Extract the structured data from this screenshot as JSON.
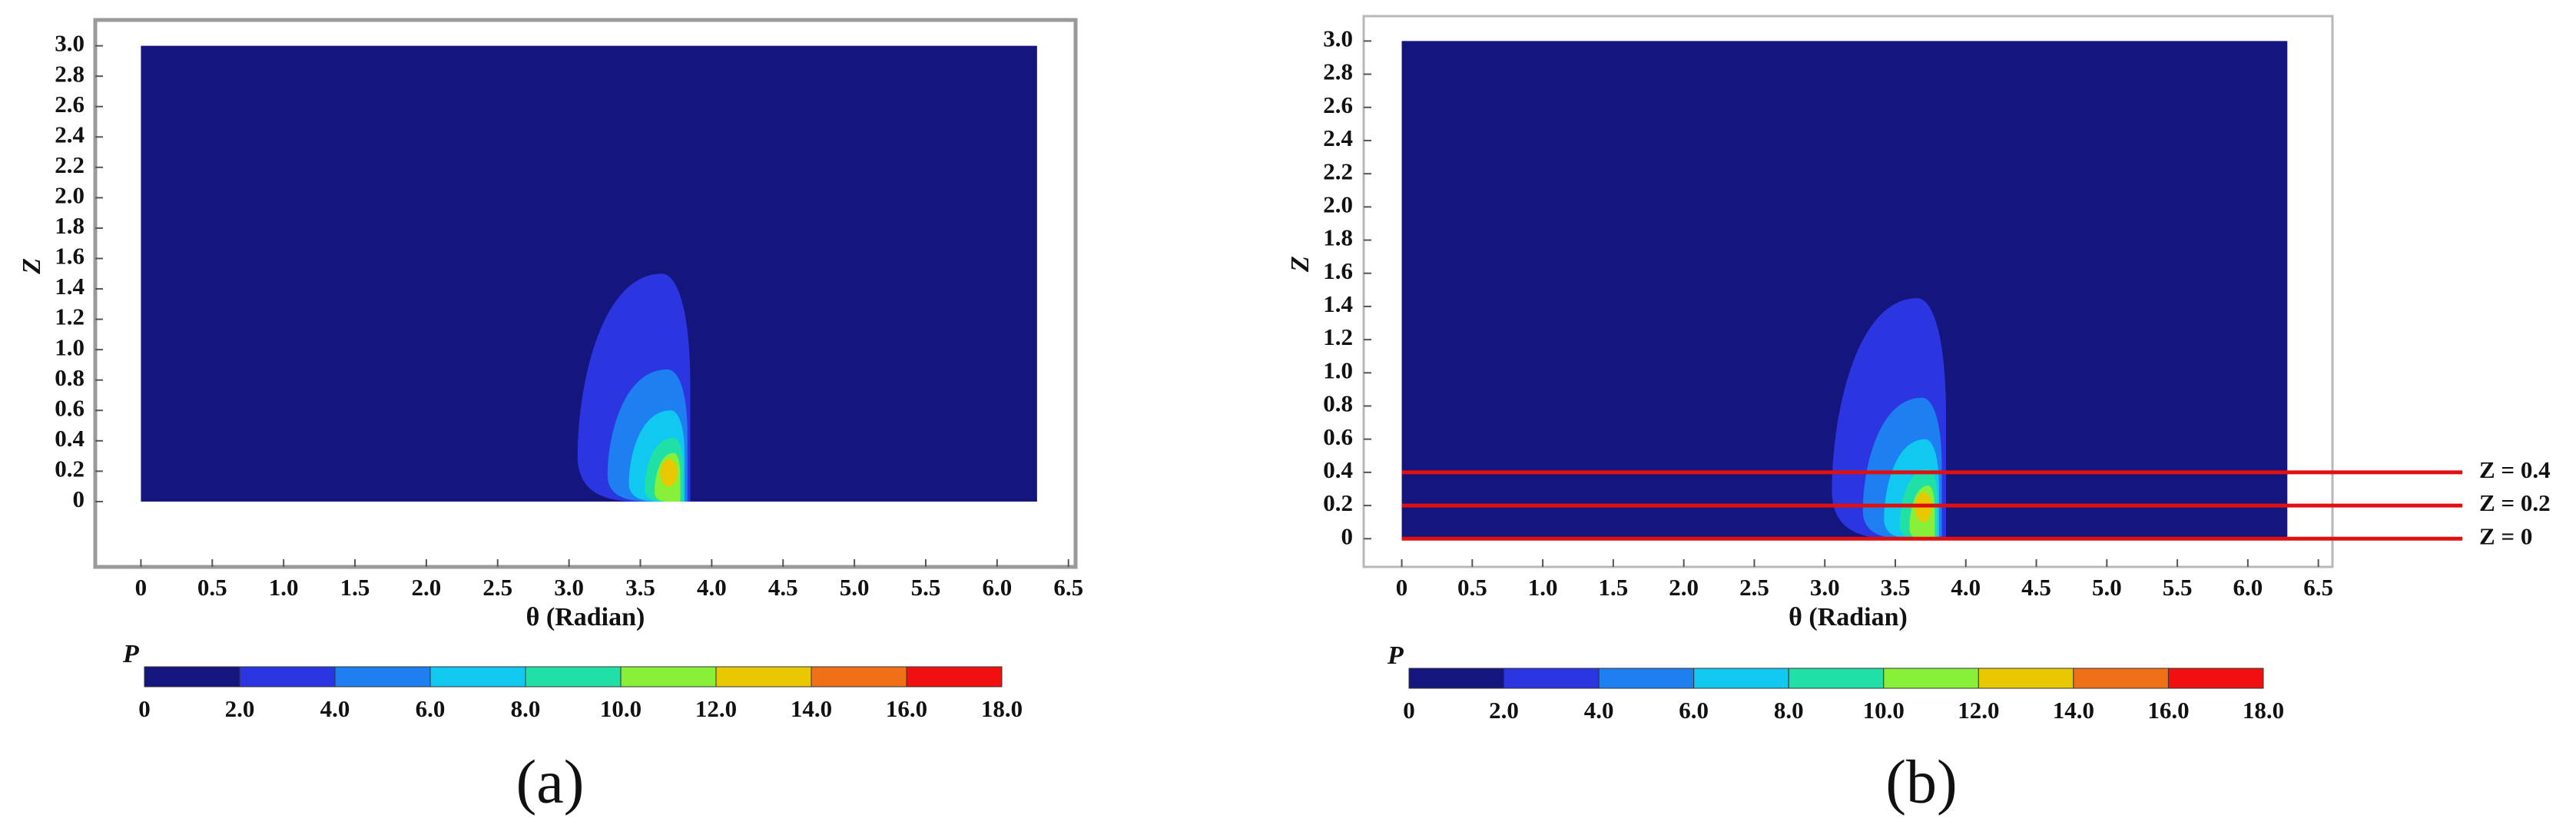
{
  "chart_data": [
    {
      "type": "contour",
      "panel_label": "(a)",
      "xlabel": "θ (Radian)",
      "ylabel": "Z",
      "xlim": [
        -0.32,
        6.55
      ],
      "ylim": [
        -0.43,
        3.17
      ],
      "xticks": [
        0,
        0.5,
        {
          "value": 1,
          "label": "1.0"
        },
        1.5,
        {
          "value": 2,
          "label": "2.0"
        },
        2.5,
        {
          "value": 3,
          "label": "3.0"
        },
        3.5,
        {
          "value": 4,
          "label": "4.0"
        },
        4.5,
        {
          "value": 5,
          "label": "5.0"
        },
        5.5,
        {
          "value": 6,
          "label": "6.0"
        },
        6.5
      ],
      "yticks": [
        0,
        0.2,
        0.4,
        0.6,
        0.8,
        {
          "value": 1,
          "label": "1.0"
        },
        1.2,
        1.4,
        1.6,
        1.8,
        {
          "value": 2,
          "label": "2.0"
        },
        2.2,
        2.4,
        2.6,
        2.8,
        {
          "value": 3,
          "label": "3.0"
        }
      ],
      "domain": {
        "theta": [
          0,
          6.28
        ],
        "z": [
          0,
          3
        ]
      },
      "contours": [
        {
          "level": 2,
          "theta": [
            3.06,
            3.85
          ],
          "z": [
            0,
            1.5
          ]
        },
        {
          "level": 4,
          "theta": [
            3.27,
            3.83
          ],
          "z": [
            0,
            0.87
          ]
        },
        {
          "level": 6,
          "theta": [
            3.42,
            3.81
          ],
          "z": [
            0,
            0.6
          ]
        },
        {
          "level": 8,
          "theta": [
            3.53,
            3.8
          ],
          "z": [
            0,
            0.42
          ]
        },
        {
          "level": 10,
          "theta": [
            3.6,
            3.78
          ],
          "z": [
            0,
            0.32
          ]
        },
        {
          "level": 12,
          "theta": [
            3.64,
            3.76
          ],
          "z": [
            0.1,
            0.28
          ]
        }
      ],
      "colorbar": {
        "label": "P",
        "ticks": [
          0,
          {
            "value": 2,
            "label": "2.0"
          },
          {
            "value": 4,
            "label": "4.0"
          },
          {
            "value": 6,
            "label": "6.0"
          },
          {
            "value": 8,
            "label": "8.0"
          },
          {
            "value": 10,
            "label": "10.0"
          },
          {
            "value": 12,
            "label": "12.0"
          },
          {
            "value": 14,
            "label": "14.0"
          },
          {
            "value": 16,
            "label": "16.0"
          },
          {
            "value": 18,
            "label": "18.0"
          }
        ],
        "colors": [
          "#15157e",
          "#2b35e0",
          "#1e7ff0",
          "#10c8f0",
          "#20e0a8",
          "#88f038",
          "#e8c800",
          "#f07018",
          "#f01010"
        ]
      }
    },
    {
      "type": "contour",
      "panel_label": "(b)",
      "xlabel": "θ (Radian)",
      "ylabel": "Z",
      "xlim": [
        -0.27,
        6.6
      ],
      "ylim": [
        -0.17,
        3.15
      ],
      "xticks": [
        0,
        0.5,
        {
          "value": 1,
          "label": "1.0"
        },
        1.5,
        {
          "value": 2,
          "label": "2.0"
        },
        2.5,
        {
          "value": 3,
          "label": "3.0"
        },
        3.5,
        {
          "value": 4,
          "label": "4.0"
        },
        4.5,
        {
          "value": 5,
          "label": "5.0"
        },
        5.5,
        {
          "value": 6,
          "label": "6.0"
        },
        6.5
      ],
      "yticks": [
        0,
        0.2,
        0.4,
        0.6,
        0.8,
        {
          "value": 1,
          "label": "1.0"
        },
        1.2,
        1.4,
        1.6,
        1.8,
        {
          "value": 2,
          "label": "2.0"
        },
        2.2,
        2.4,
        2.6,
        2.8,
        {
          "value": 3,
          "label": "3.0"
        }
      ],
      "domain": {
        "theta": [
          0,
          6.28
        ],
        "z": [
          0,
          3
        ]
      },
      "contours": [
        {
          "level": 2,
          "theta": [
            3.05,
            3.86
          ],
          "z": [
            0,
            1.45
          ]
        },
        {
          "level": 4,
          "theta": [
            3.27,
            3.83
          ],
          "z": [
            0,
            0.85
          ]
        },
        {
          "level": 6,
          "theta": [
            3.42,
            3.81
          ],
          "z": [
            0,
            0.6
          ]
        },
        {
          "level": 8,
          "theta": [
            3.53,
            3.8
          ],
          "z": [
            0,
            0.42
          ]
        },
        {
          "level": 10,
          "theta": [
            3.6,
            3.78
          ],
          "z": [
            0,
            0.32
          ]
        },
        {
          "level": 12,
          "theta": [
            3.64,
            3.76
          ],
          "z": [
            0.1,
            0.28
          ]
        }
      ],
      "lines": [
        {
          "value": 0.4,
          "label": "Z = 0.4",
          "color": "#e01010"
        },
        {
          "value": 0.2,
          "label": "Z = 0.2",
          "color": "#e01010"
        },
        {
          "value": 0,
          "label": "Z = 0",
          "color": "#e01010"
        }
      ],
      "colorbar": {
        "label": "P",
        "ticks": [
          0,
          {
            "value": 2,
            "label": "2.0"
          },
          {
            "value": 4,
            "label": "4.0"
          },
          {
            "value": 6,
            "label": "6.0"
          },
          {
            "value": 8,
            "label": "8.0"
          },
          {
            "value": 10,
            "label": "10.0"
          },
          {
            "value": 12,
            "label": "12.0"
          },
          {
            "value": 14,
            "label": "14.0"
          },
          {
            "value": 16,
            "label": "16.0"
          },
          {
            "value": 18,
            "label": "18.0"
          }
        ],
        "colors": [
          "#15157e",
          "#2b35e0",
          "#1e7ff0",
          "#10c8f0",
          "#20e0a8",
          "#88f038",
          "#e8c800",
          "#f07018",
          "#f01010"
        ]
      }
    }
  ]
}
